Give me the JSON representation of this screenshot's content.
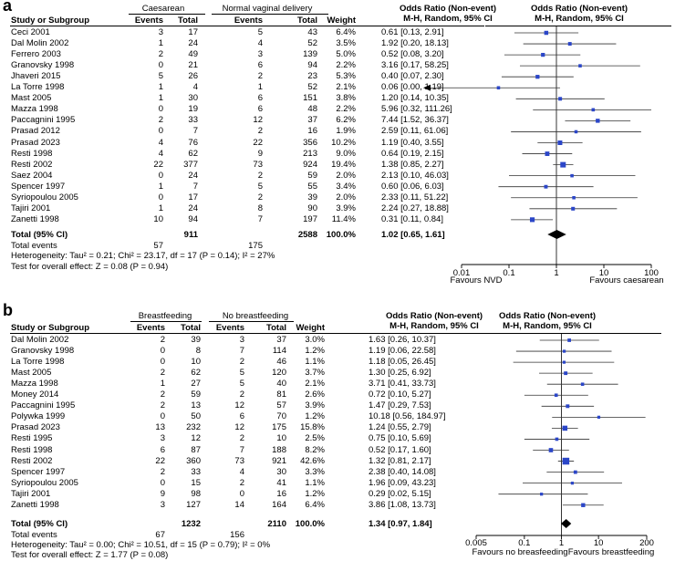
{
  "panels": [
    {
      "label": "a",
      "group1": "Caesarean",
      "group2": "Normal vaginal delivery",
      "col_study": "Study or Subgroup",
      "col_events": "Events",
      "col_total": "Total",
      "col_weight": "Weight",
      "col_or": "Odds Ratio (Non-event)",
      "col_or_sub": "M-H, Random, 95% CI",
      "studies": [
        {
          "name": "Ceci 2001",
          "e1": "3",
          "t1": "17",
          "e2": "5",
          "t2": "43",
          "w": "6.4%",
          "ci": "0.61 [0.13, 2.91]",
          "or": 0.61,
          "lo": 0.13,
          "hi": 2.91,
          "wn": 6.4
        },
        {
          "name": "Dal Molin 2002",
          "e1": "1",
          "t1": "24",
          "e2": "4",
          "t2": "52",
          "w": "3.5%",
          "ci": "1.92 [0.20, 18.13]",
          "or": 1.92,
          "lo": 0.2,
          "hi": 18.13,
          "wn": 3.5
        },
        {
          "name": "Ferrero 2003",
          "e1": "2",
          "t1": "49",
          "e2": "3",
          "t2": "139",
          "w": "5.0%",
          "ci": "0.52 [0.08, 3.20]",
          "or": 0.52,
          "lo": 0.08,
          "hi": 3.2,
          "wn": 5.0
        },
        {
          "name": "Granovsky 1998",
          "e1": "0",
          "t1": "21",
          "e2": "6",
          "t2": "94",
          "w": "2.2%",
          "ci": "3.16 [0.17, 58.25]",
          "or": 3.16,
          "lo": 0.17,
          "hi": 58.25,
          "wn": 2.2
        },
        {
          "name": "Jhaveri 2015",
          "e1": "5",
          "t1": "26",
          "e2": "2",
          "t2": "23",
          "w": "5.3%",
          "ci": "0.40 [0.07, 2.30]",
          "or": 0.4,
          "lo": 0.07,
          "hi": 2.3,
          "wn": 5.3
        },
        {
          "name": "La Torre 1998",
          "e1": "1",
          "t1": "4",
          "e2": "1",
          "t2": "52",
          "w": "2.1%",
          "ci": "0.06 [0.00, 1.19]",
          "or": 0.06,
          "lo": 0.001,
          "hi": 1.19,
          "wn": 2.1,
          "arrow_left": true
        },
        {
          "name": "Mast 2005",
          "e1": "1",
          "t1": "30",
          "e2": "6",
          "t2": "151",
          "w": "3.8%",
          "ci": "1.20 [0.14, 10.35]",
          "or": 1.2,
          "lo": 0.14,
          "hi": 10.35,
          "wn": 3.8
        },
        {
          "name": "Mazza 1998",
          "e1": "0",
          "t1": "19",
          "e2": "6",
          "t2": "48",
          "w": "2.2%",
          "ci": "5.96 [0.32, 111.26]",
          "or": 5.96,
          "lo": 0.32,
          "hi": 111.26,
          "wn": 2.2
        },
        {
          "name": "Paccagnini 1995",
          "e1": "2",
          "t1": "33",
          "e2": "12",
          "t2": "37",
          "w": "6.2%",
          "ci": "7.44 [1.52, 36.37]",
          "or": 7.44,
          "lo": 1.52,
          "hi": 36.37,
          "wn": 6.2
        },
        {
          "name": "Prasad 2012",
          "e1": "0",
          "t1": "7",
          "e2": "2",
          "t2": "16",
          "w": "1.9%",
          "ci": "2.59 [0.11, 61.06]",
          "or": 2.59,
          "lo": 0.11,
          "hi": 61.06,
          "wn": 1.9
        },
        {
          "name": "Prasad 2023",
          "e1": "4",
          "t1": "76",
          "e2": "22",
          "t2": "356",
          "w": "10.2%",
          "ci": "1.19 [0.40, 3.55]",
          "or": 1.19,
          "lo": 0.4,
          "hi": 3.55,
          "wn": 10.2
        },
        {
          "name": "Resti 1998",
          "e1": "4",
          "t1": "62",
          "e2": "9",
          "t2": "213",
          "w": "9.0%",
          "ci": "0.64 [0.19, 2.15]",
          "or": 0.64,
          "lo": 0.19,
          "hi": 2.15,
          "wn": 9.0
        },
        {
          "name": "Resti 2002",
          "e1": "22",
          "t1": "377",
          "e2": "73",
          "t2": "924",
          "w": "19.4%",
          "ci": "1.38 [0.85, 2.27]",
          "or": 1.38,
          "lo": 0.85,
          "hi": 2.27,
          "wn": 19.4
        },
        {
          "name": "Saez 2004",
          "e1": "0",
          "t1": "24",
          "e2": "2",
          "t2": "59",
          "w": "2.0%",
          "ci": "2.13 [0.10, 46.03]",
          "or": 2.13,
          "lo": 0.1,
          "hi": 46.03,
          "wn": 2.0
        },
        {
          "name": "Spencer 1997",
          "e1": "1",
          "t1": "7",
          "e2": "5",
          "t2": "55",
          "w": "3.4%",
          "ci": "0.60 [0.06, 6.03]",
          "or": 0.6,
          "lo": 0.06,
          "hi": 6.03,
          "wn": 3.4
        },
        {
          "name": "Syriopoulou 2005",
          "e1": "0",
          "t1": "17",
          "e2": "2",
          "t2": "39",
          "w": "2.0%",
          "ci": "2.33 [0.11, 51.22]",
          "or": 2.33,
          "lo": 0.11,
          "hi": 51.22,
          "wn": 2.0
        },
        {
          "name": "Tajiri 2001",
          "e1": "1",
          "t1": "24",
          "e2": "8",
          "t2": "90",
          "w": "3.9%",
          "ci": "2.24 [0.27, 18.88]",
          "or": 2.24,
          "lo": 0.27,
          "hi": 18.88,
          "wn": 3.9
        },
        {
          "name": "Zanetti 1998",
          "e1": "10",
          "t1": "94",
          "e2": "7",
          "t2": "197",
          "w": "11.4%",
          "ci": "0.31 [0.11, 0.84]",
          "or": 0.31,
          "lo": 0.11,
          "hi": 0.84,
          "wn": 11.4
        }
      ],
      "total_label": "Total (95% CI)",
      "total_t1": "911",
      "total_t2": "2588",
      "total_w": "100.0%",
      "total_ci": "1.02 [0.65, 1.61]",
      "total_or": 1.02,
      "total_lo": 0.65,
      "total_hi": 1.61,
      "events_label": "Total events",
      "total_e1": "57",
      "total_e2": "175",
      "heterogeneity": "Heterogeneity: Tau² = 0.21; Chi² = 23.17, df = 17 (P = 0.14); I² = 27%",
      "overall": "Test for overall effect: Z = 0.08 (P = 0.94)",
      "axis_min": 0.01,
      "axis_max": 100,
      "axis_ticks": [
        0.01,
        0.1,
        1,
        10,
        100
      ],
      "axis_tick_labels": [
        "0.01",
        "0.1",
        "1",
        "10",
        "100"
      ],
      "favours_left": "Favours NVD",
      "favours_right": "Favours caesarean"
    },
    {
      "label": "b",
      "group1": "Breastfeeding",
      "group2": "No breastfeeding",
      "col_study": "Study or Subgroup",
      "col_events": "Events",
      "col_total": "Total",
      "col_weight": "Weight",
      "col_or": "Odds Ratio (Non-event)",
      "col_or_sub": "M-H, Random, 95% CI",
      "studies": [
        {
          "name": "Dal Molin 2002",
          "e1": "2",
          "t1": "39",
          "e2": "3",
          "t2": "37",
          "w": "3.0%",
          "ci": "1.63 [0.26, 10.37]",
          "or": 1.63,
          "lo": 0.26,
          "hi": 10.37,
          "wn": 3.0
        },
        {
          "name": "Granovsky 1998",
          "e1": "0",
          "t1": "8",
          "e2": "7",
          "t2": "114",
          "w": "1.2%",
          "ci": "1.19 [0.06, 22.58]",
          "or": 1.19,
          "lo": 0.06,
          "hi": 22.58,
          "wn": 1.2
        },
        {
          "name": "La Torre 1998",
          "e1": "0",
          "t1": "10",
          "e2": "2",
          "t2": "46",
          "w": "1.1%",
          "ci": "1.18 [0.05, 26.45]",
          "or": 1.18,
          "lo": 0.05,
          "hi": 26.45,
          "wn": 1.1
        },
        {
          "name": "Mast 2005",
          "e1": "2",
          "t1": "62",
          "e2": "5",
          "t2": "120",
          "w": "3.7%",
          "ci": "1.30 [0.25, 6.92]",
          "or": 1.3,
          "lo": 0.25,
          "hi": 6.92,
          "wn": 3.7
        },
        {
          "name": "Mazza 1998",
          "e1": "1",
          "t1": "27",
          "e2": "5",
          "t2": "40",
          "w": "2.1%",
          "ci": "3.71 [0.41, 33.73]",
          "or": 3.71,
          "lo": 0.41,
          "hi": 33.73,
          "wn": 2.1
        },
        {
          "name": "Money 2014",
          "e1": "2",
          "t1": "59",
          "e2": "2",
          "t2": "81",
          "w": "2.6%",
          "ci": "0.72 [0.10, 5.27]",
          "or": 0.72,
          "lo": 0.1,
          "hi": 5.27,
          "wn": 2.6
        },
        {
          "name": "Paccagnini 1995",
          "e1": "2",
          "t1": "13",
          "e2": "12",
          "t2": "57",
          "w": "3.9%",
          "ci": "1.47 [0.29, 7.53]",
          "or": 1.47,
          "lo": 0.29,
          "hi": 7.53,
          "wn": 3.9
        },
        {
          "name": "Polywka 1999",
          "e1": "0",
          "t1": "50",
          "e2": "6",
          "t2": "70",
          "w": "1.2%",
          "ci": "10.18 [0.56, 184.97]",
          "or": 10.18,
          "lo": 0.56,
          "hi": 184.97,
          "wn": 1.2
        },
        {
          "name": "Prasad 2023",
          "e1": "13",
          "t1": "232",
          "e2": "12",
          "t2": "175",
          "w": "15.8%",
          "ci": "1.24 [0.55, 2.79]",
          "or": 1.24,
          "lo": 0.55,
          "hi": 2.79,
          "wn": 15.8
        },
        {
          "name": "Resti 1995",
          "e1": "3",
          "t1": "12",
          "e2": "2",
          "t2": "10",
          "w": "2.5%",
          "ci": "0.75 [0.10, 5.69]",
          "or": 0.75,
          "lo": 0.1,
          "hi": 5.69,
          "wn": 2.5
        },
        {
          "name": "Resti 1998",
          "e1": "6",
          "t1": "87",
          "e2": "7",
          "t2": "188",
          "w": "8.2%",
          "ci": "0.52 [0.17, 1.60]",
          "or": 0.52,
          "lo": 0.17,
          "hi": 1.6,
          "wn": 8.2
        },
        {
          "name": "Resti 2002",
          "e1": "22",
          "t1": "360",
          "e2": "73",
          "t2": "921",
          "w": "42.6%",
          "ci": "1.32 [0.81, 2.17]",
          "or": 1.32,
          "lo": 0.81,
          "hi": 2.17,
          "wn": 42.6
        },
        {
          "name": "Spencer 1997",
          "e1": "2",
          "t1": "33",
          "e2": "4",
          "t2": "30",
          "w": "3.3%",
          "ci": "2.38 [0.40, 14.08]",
          "or": 2.38,
          "lo": 0.4,
          "hi": 14.08,
          "wn": 3.3
        },
        {
          "name": "Syriopoulou 2005",
          "e1": "0",
          "t1": "15",
          "e2": "2",
          "t2": "41",
          "w": "1.1%",
          "ci": "1.96 [0.09, 43.23]",
          "or": 1.96,
          "lo": 0.09,
          "hi": 43.23,
          "wn": 1.1
        },
        {
          "name": "Tajiri 2001",
          "e1": "9",
          "t1": "98",
          "e2": "0",
          "t2": "16",
          "w": "1.2%",
          "ci": "0.29 [0.02, 5.15]",
          "or": 0.29,
          "lo": 0.02,
          "hi": 5.15,
          "wn": 1.2
        },
        {
          "name": "Zanetti 1998",
          "e1": "3",
          "t1": "127",
          "e2": "14",
          "t2": "164",
          "w": "6.4%",
          "ci": "3.86 [1.08, 13.73]",
          "or": 3.86,
          "lo": 1.08,
          "hi": 13.73,
          "wn": 6.4
        }
      ],
      "total_label": "Total (95% CI)",
      "total_t1": "1232",
      "total_t2": "2110",
      "total_w": "100.0%",
      "total_ci": "1.34 [0.97, 1.84]",
      "total_or": 1.34,
      "total_lo": 0.97,
      "total_hi": 1.84,
      "events_label": "Total events",
      "total_e1": "67",
      "total_e2": "156",
      "heterogeneity": "Heterogeneity: Tau² = 0.00; Chi² = 10.51, df = 15 (P = 0.79); I² = 0%",
      "overall": "Test for overall effect: Z = 1.77 (P = 0.08)",
      "axis_min": 0.005,
      "axis_max": 200,
      "axis_ticks": [
        0.005,
        0.1,
        1,
        10,
        200
      ],
      "axis_tick_labels": [
        "0.005",
        "0.1",
        "1",
        "10",
        "200"
      ],
      "favours_left": "Favours no breasfeeding",
      "favours_right": "Favours breastfeeding"
    }
  ],
  "chart_data": [
    {
      "type": "forest",
      "title": "a",
      "xlabel": "Odds Ratio (Non-event) M-H, Random, 95% CI",
      "xscale": "log",
      "xlim": [
        0.01,
        100
      ],
      "pooled": {
        "or": 1.02,
        "lo": 0.65,
        "hi": 1.61
      },
      "studies": [
        "Ceci 2001",
        "Dal Molin 2002",
        "Ferrero 2003",
        "Granovsky 1998",
        "Jhaveri 2015",
        "La Torre 1998",
        "Mast 2005",
        "Mazza 1998",
        "Paccagnini 1995",
        "Prasad 2012",
        "Prasad 2023",
        "Resti 1998",
        "Resti 2002",
        "Saez 2004",
        "Spencer 1997",
        "Syriopoulou 2005",
        "Tajiri 2001",
        "Zanetti 1998"
      ],
      "or": [
        0.61,
        1.92,
        0.52,
        3.16,
        0.4,
        0.06,
        1.2,
        5.96,
        7.44,
        2.59,
        1.19,
        0.64,
        1.38,
        2.13,
        0.6,
        2.33,
        2.24,
        0.31
      ]
    },
    {
      "type": "forest",
      "title": "b",
      "xlabel": "Odds Ratio (Non-event) M-H, Random, 95% CI",
      "xscale": "log",
      "xlim": [
        0.005,
        200
      ],
      "pooled": {
        "or": 1.34,
        "lo": 0.97,
        "hi": 1.84
      },
      "studies": [
        "Dal Molin 2002",
        "Granovsky 1998",
        "La Torre 1998",
        "Mast 2005",
        "Mazza 1998",
        "Money 2014",
        "Paccagnini 1995",
        "Polywka 1999",
        "Prasad 2023",
        "Resti 1995",
        "Resti 1998",
        "Resti 2002",
        "Spencer 1997",
        "Syriopoulou 2005",
        "Tajiri 2001",
        "Zanetti 1998"
      ],
      "or": [
        1.63,
        1.19,
        1.18,
        1.3,
        3.71,
        0.72,
        1.47,
        10.18,
        1.24,
        0.75,
        0.52,
        1.32,
        2.38,
        1.96,
        0.29,
        3.86
      ]
    }
  ]
}
